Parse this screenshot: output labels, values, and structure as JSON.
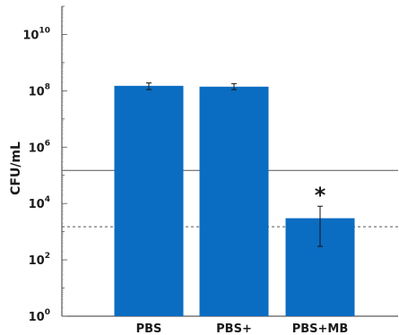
{
  "chart_data": {
    "type": "bar",
    "ylabel": "CFU/mL",
    "yscale": "log10",
    "ylim": [
      1,
      100000000000
    ],
    "yticks": [
      {
        "exp": 0,
        "base": "10",
        "power": "0"
      },
      {
        "exp": 2,
        "base": "10",
        "power": "2"
      },
      {
        "exp": 4,
        "base": "10",
        "power": "4"
      },
      {
        "exp": 6,
        "base": "10",
        "power": "6"
      },
      {
        "exp": 8,
        "base": "10",
        "power": "8"
      },
      {
        "exp": 10,
        "base": "10",
        "power": "10"
      }
    ],
    "categories": [
      "PBS",
      "PBS+",
      "PBS+MB"
    ],
    "values": [
      150000000,
      140000000,
      3000
    ],
    "error_low": [
      110000000,
      110000000,
      300
    ],
    "error_high": [
      190000000,
      180000000,
      8000
    ],
    "annotations": [
      {
        "category_index": 2,
        "text": "*"
      }
    ],
    "reference_lines": [
      {
        "value": 150000,
        "style": "solid"
      },
      {
        "value": 1500,
        "style": "dashed"
      }
    ],
    "bar_color": "#0a6dc2",
    "grid": false
  }
}
